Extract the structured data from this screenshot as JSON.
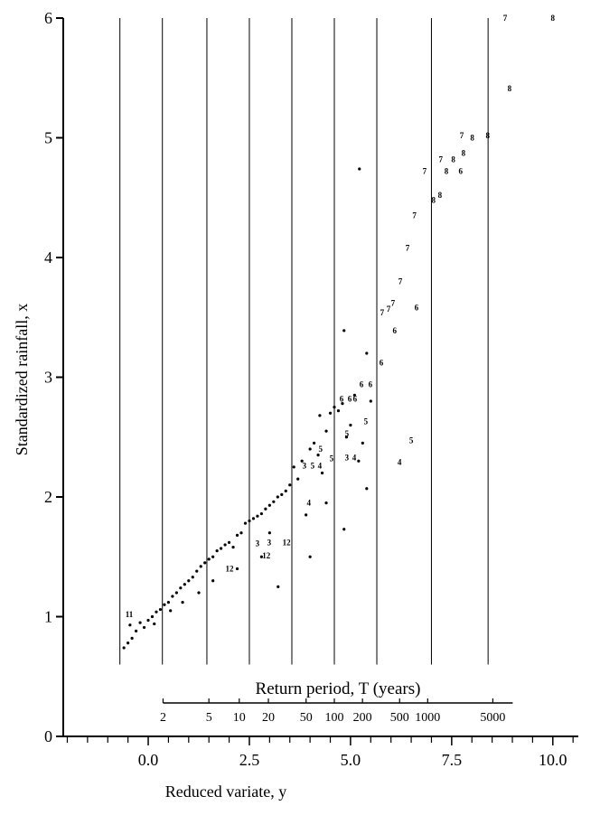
{
  "chart_data": {
    "type": "scatter",
    "xlabel": "Reduced variate, y",
    "ylabel": "Standardized rainfall, x",
    "xlim": [
      -2.1,
      10.63
    ],
    "ylim": [
      0,
      6
    ],
    "xticks": [
      {
        "value": 0,
        "label": "0.0"
      },
      2.5,
      {
        "value": 5,
        "label": "5.0"
      },
      7.5,
      {
        "value": 10,
        "label": "10.0"
      }
    ],
    "xminorticks": [
      -2,
      -1.5,
      -1,
      -0.5,
      0.5,
      1,
      1.5,
      2,
      3,
      3.5,
      4,
      4.5,
      5.5,
      6,
      6.5,
      7,
      8,
      8.5,
      9,
      9.5,
      10.5
    ],
    "yticks": [
      0,
      1,
      2,
      3,
      4,
      5,
      6
    ],
    "vlines": [
      -0.7,
      0.35,
      1.45,
      2.5,
      3.55,
      4.6,
      5.65,
      7.0,
      8.4
    ],
    "vline_from": 0.6,
    "t_axis_label": "Return period, T (years)",
    "t_ticks": [
      2,
      5,
      10,
      20,
      50,
      100,
      200,
      500,
      1000,
      5000
    ],
    "dots": {
      "x": [
        -0.6,
        -0.5,
        -0.45,
        -0.4,
        -0.3,
        -0.2,
        -0.1,
        0.0,
        0.1,
        0.15,
        0.2,
        0.3,
        0.4,
        0.5,
        0.55,
        0.6,
        0.7,
        0.8,
        0.85,
        0.9,
        1.0,
        1.1,
        1.2,
        1.25,
        1.3,
        1.4,
        1.5,
        1.6,
        1.7,
        1.8,
        1.9,
        2.0,
        2.1,
        2.2,
        2.3,
        2.4,
        2.5,
        2.6,
        2.7,
        2.8,
        2.9,
        3.0,
        3.1,
        3.2,
        3.3,
        3.4,
        3.5,
        3.6,
        3.7,
        3.8,
        3.9,
        4.0,
        4.1,
        4.2,
        4.3,
        4.4,
        4.5,
        4.6,
        4.7,
        4.8,
        4.9,
        5.0,
        5.1,
        5.2,
        5.3,
        5.4,
        5.22,
        4.84,
        3.21,
        4.0,
        4.84,
        5.4,
        4.24,
        5.5,
        2.2,
        1.6,
        3.0,
        2.8,
        4.4
      ],
      "y": [
        0.74,
        0.78,
        0.93,
        0.82,
        0.88,
        0.95,
        0.91,
        0.97,
        1.0,
        0.94,
        1.04,
        1.06,
        1.1,
        1.12,
        1.05,
        1.17,
        1.2,
        1.24,
        1.12,
        1.27,
        1.3,
        1.33,
        1.38,
        1.2,
        1.42,
        1.45,
        1.48,
        1.5,
        1.55,
        1.57,
        1.6,
        1.62,
        1.58,
        1.68,
        1.7,
        1.78,
        1.8,
        1.82,
        1.84,
        1.86,
        1.9,
        1.93,
        1.96,
        2.0,
        2.02,
        2.05,
        2.1,
        2.25,
        2.15,
        2.3,
        1.85,
        2.4,
        2.45,
        2.35,
        2.2,
        2.55,
        2.7,
        2.75,
        2.72,
        2.78,
        2.5,
        2.6,
        2.85,
        2.3,
        2.45,
        3.2,
        4.74,
        3.39,
        1.25,
        1.5,
        1.73,
        2.07,
        2.68,
        2.8,
        1.4,
        1.3,
        1.7,
        1.5,
        1.95
      ]
    },
    "labeled": {
      "x": [
        8.82,
        10.0,
        8.93,
        7.75,
        8.01,
        8.39,
        7.23,
        7.54,
        7.79,
        6.83,
        7.37,
        7.72,
        7.05,
        7.21,
        6.58,
        6.41,
        6.23,
        5.78,
        5.94,
        6.05,
        6.63,
        6.09,
        5.76,
        5.27,
        5.49,
        4.78,
        4.98,
        5.11,
        5.38,
        4.91,
        4.26,
        6.5,
        6.21,
        4.53,
        4.91,
        5.09,
        3.86,
        4.06,
        4.24,
        3.97,
        2.7,
        2.99,
        3.42,
        2.92,
        2.01,
        -0.47
      ],
      "y": [
        6.0,
        6.0,
        5.41,
        5.02,
        5.0,
        5.02,
        4.82,
        4.82,
        4.87,
        4.72,
        4.72,
        4.72,
        4.48,
        4.52,
        4.35,
        4.08,
        3.8,
        3.54,
        3.57,
        3.62,
        3.58,
        3.39,
        3.12,
        2.94,
        2.94,
        2.82,
        2.82,
        2.82,
        2.63,
        2.53,
        2.4,
        2.47,
        2.29,
        2.32,
        2.33,
        2.33,
        2.26,
        2.26,
        2.26,
        1.95,
        1.61,
        1.62,
        1.62,
        1.51,
        1.4,
        1.02
      ],
      "labels": [
        "7",
        "8",
        "8",
        "7",
        "8",
        "8",
        "7",
        "8",
        "8",
        "7",
        "8",
        "6",
        "8",
        "8",
        "7",
        "7",
        "7",
        "7",
        "7",
        "7",
        "6",
        "6",
        "6",
        "6",
        "6",
        "6",
        "6",
        "6",
        "5",
        "5",
        "5",
        "5",
        "4",
        "5",
        "3",
        "4",
        "3",
        "5",
        "4",
        "4",
        "3",
        "3",
        "12",
        "12",
        "12",
        "11"
      ]
    }
  }
}
